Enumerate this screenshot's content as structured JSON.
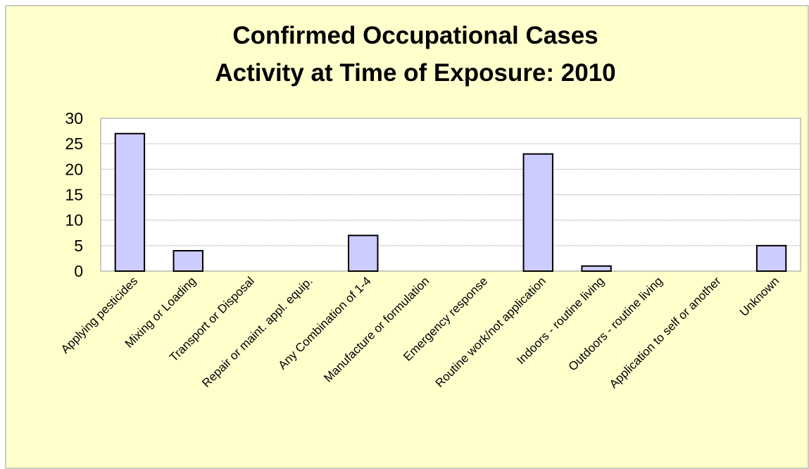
{
  "chart_data": {
    "type": "bar",
    "title": "Confirmed Occupational Cases",
    "subtitle": "Activity at Time of Exposure: 2010",
    "categories": [
      "Applying pesticides",
      "Mixing or Loading",
      "Transport or Disposal",
      "Repair or maint. appl. equip.",
      "Any Combination of 1-4",
      "Manufacture or formulation",
      "Emergency response",
      "Routine work/not application",
      "Indoors - routine living",
      "Outdoors - routine living",
      "Application to self or another",
      "Unknown"
    ],
    "values": [
      27,
      4,
      0,
      0,
      7,
      0,
      0,
      23,
      1,
      0,
      0,
      5
    ],
    "color": "#ccccff",
    "ylim": [
      0,
      30
    ],
    "yticks": [
      0,
      5,
      10,
      15,
      20,
      25,
      30
    ],
    "grid": true
  }
}
